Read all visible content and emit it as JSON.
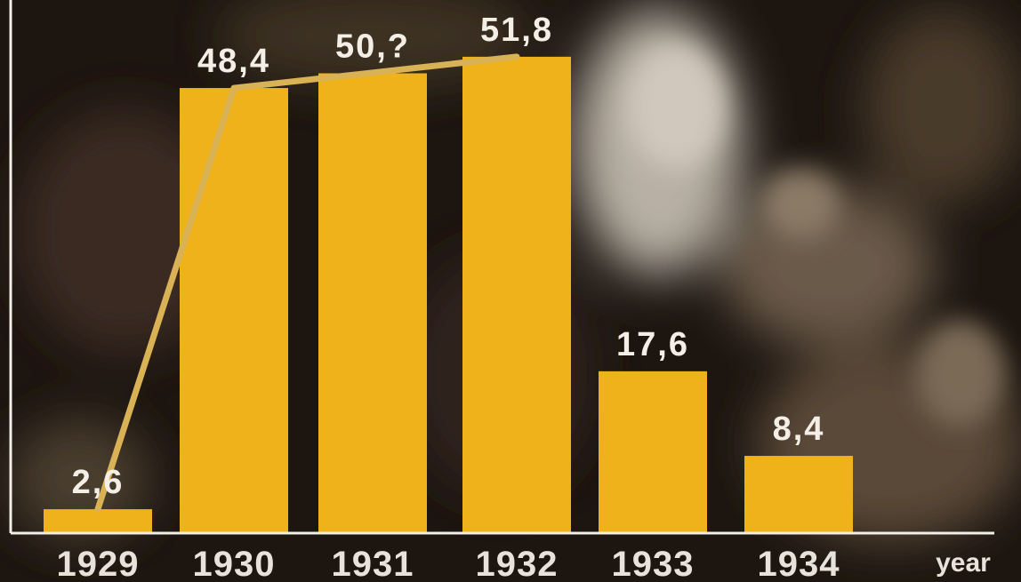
{
  "colors": {
    "bar": "#f0b21a",
    "trend_line": "#d8b255",
    "axis": "#f2eee8",
    "label_text": "#f4efe6"
  },
  "chart_data": {
    "type": "bar",
    "categories": [
      "1929",
      "1930",
      "1931",
      "1932",
      "1933",
      "1934"
    ],
    "values": [
      2.6,
      48.4,
      50.0,
      51.8,
      17.6,
      8.4
    ],
    "value_labels": [
      "2,6",
      "48,4",
      "50,?",
      "51,8",
      "17,6",
      "8,4"
    ],
    "xlabel": "year",
    "ylabel": "",
    "title": "",
    "ylim": [
      0,
      56
    ],
    "grid": false,
    "legend": "none",
    "overlay_line": {
      "categories": [
        "1929",
        "1930",
        "1932"
      ],
      "values": [
        2.6,
        48.4,
        51.8
      ]
    }
  }
}
